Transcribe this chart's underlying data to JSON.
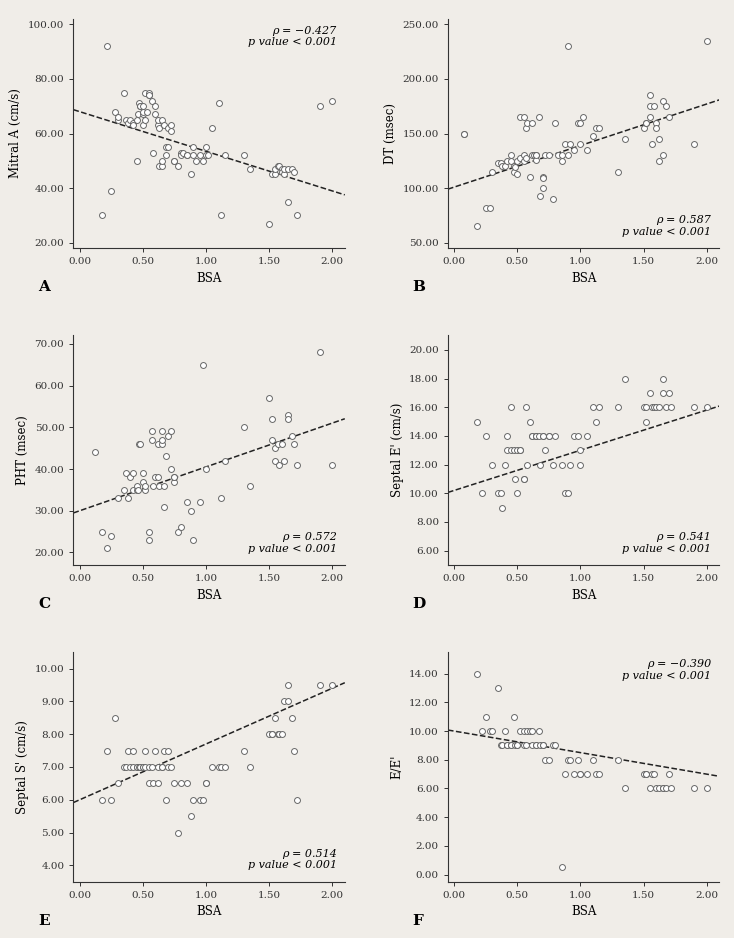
{
  "panels": [
    {
      "label": "A",
      "xlabel": "BSA",
      "ylabel": "Mitral A (cm/s)",
      "xlim": [
        -0.05,
        2.1
      ],
      "ylim": [
        18,
        102
      ],
      "yticks": [
        20.0,
        40.0,
        60.0,
        80.0,
        100.0
      ],
      "xticks": [
        0.0,
        0.5,
        1.0,
        1.5,
        2.0
      ],
      "rho": "ρ = −0.427",
      "pval": "p value < 0.001",
      "stats_loc": "upper right",
      "line_x0": -0.05,
      "line_x1": 2.1,
      "line_slope": -14.5,
      "line_intercept": 68.0,
      "x": [
        0.18,
        0.22,
        0.25,
        0.28,
        0.3,
        0.3,
        0.35,
        0.37,
        0.38,
        0.4,
        0.42,
        0.42,
        0.45,
        0.45,
        0.46,
        0.47,
        0.48,
        0.48,
        0.5,
        0.5,
        0.5,
        0.5,
        0.52,
        0.52,
        0.53,
        0.55,
        0.55,
        0.55,
        0.57,
        0.58,
        0.6,
        0.6,
        0.62,
        0.62,
        0.63,
        0.63,
        0.65,
        0.65,
        0.65,
        0.67,
        0.68,
        0.68,
        0.7,
        0.7,
        0.72,
        0.72,
        0.75,
        0.75,
        0.78,
        0.8,
        0.8,
        0.82,
        0.85,
        0.85,
        0.88,
        0.9,
        0.9,
        0.92,
        0.95,
        0.98,
        1.0,
        1.0,
        1.02,
        1.05,
        1.1,
        1.12,
        1.15,
        1.3,
        1.35,
        1.5,
        1.52,
        1.55,
        1.55,
        1.57,
        1.58,
        1.6,
        1.6,
        1.62,
        1.62,
        1.65,
        1.65,
        1.68,
        1.7,
        1.72,
        1.9,
        2.0
      ],
      "y": [
        30,
        92,
        39,
        68,
        65,
        66,
        75,
        65,
        64,
        65,
        64,
        63,
        65,
        50,
        67,
        71,
        70,
        70,
        63,
        67,
        68,
        70,
        65,
        75,
        68,
        74,
        75,
        74,
        72,
        53,
        70,
        67,
        63,
        65,
        48,
        62,
        65,
        48,
        50,
        63,
        52,
        55,
        62,
        55,
        63,
        61,
        50,
        50,
        48,
        53,
        52,
        53,
        52,
        52,
        45,
        55,
        52,
        50,
        52,
        50,
        52,
        55,
        52,
        62,
        71,
        30,
        52,
        52,
        47,
        27,
        45,
        45,
        47,
        48,
        48,
        47,
        46,
        45,
        47,
        47,
        35,
        47,
        46,
        30,
        70,
        72
      ]
    },
    {
      "label": "B",
      "xlabel": "BSA",
      "ylabel": "DT (msec)",
      "xlim": [
        -0.05,
        2.1
      ],
      "ylim": [
        45,
        255
      ],
      "yticks": [
        50.0,
        100.0,
        150.0,
        200.0,
        250.0
      ],
      "xticks": [
        0.0,
        0.5,
        1.0,
        1.5,
        2.0
      ],
      "rho": "ρ = 0.587",
      "pval": "p value < 0.001",
      "stats_loc": "lower right",
      "line_x0": -0.05,
      "line_x1": 2.1,
      "line_slope": 38.0,
      "line_intercept": 101.0,
      "x": [
        0.08,
        0.08,
        0.18,
        0.25,
        0.28,
        0.3,
        0.35,
        0.37,
        0.38,
        0.4,
        0.42,
        0.45,
        0.45,
        0.47,
        0.47,
        0.48,
        0.5,
        0.5,
        0.52,
        0.52,
        0.55,
        0.55,
        0.55,
        0.57,
        0.57,
        0.58,
        0.6,
        0.62,
        0.62,
        0.63,
        0.65,
        0.65,
        0.65,
        0.67,
        0.68,
        0.7,
        0.7,
        0.7,
        0.72,
        0.75,
        0.78,
        0.8,
        0.82,
        0.85,
        0.85,
        0.88,
        0.9,
        0.9,
        0.92,
        0.95,
        0.98,
        1.0,
        1.0,
        1.02,
        1.05,
        1.1,
        1.12,
        1.15,
        1.3,
        1.35,
        1.5,
        1.52,
        1.52,
        1.55,
        1.55,
        1.55,
        1.57,
        1.58,
        1.6,
        1.6,
        1.62,
        1.62,
        1.65,
        1.65,
        1.68,
        1.7,
        1.9,
        2.0
      ],
      "y": [
        150,
        150,
        65,
        82,
        82,
        115,
        123,
        123,
        120,
        120,
        125,
        130,
        125,
        120,
        115,
        119,
        125,
        113,
        165,
        128,
        130,
        125,
        165,
        128,
        155,
        160,
        110,
        160,
        130,
        130,
        130,
        126,
        130,
        165,
        93,
        110,
        109,
        100,
        130,
        130,
        90,
        160,
        130,
        125,
        130,
        140,
        130,
        230,
        140,
        135,
        160,
        140,
        160,
        165,
        135,
        148,
        155,
        155,
        115,
        145,
        155,
        160,
        160,
        175,
        185,
        165,
        140,
        175,
        160,
        155,
        125,
        145,
        130,
        180,
        175,
        165,
        140,
        235
      ]
    },
    {
      "label": "C",
      "xlabel": "BSA",
      "ylabel": "PHT (msec)",
      "xlim": [
        -0.05,
        2.1
      ],
      "ylim": [
        17,
        72
      ],
      "yticks": [
        20.0,
        30.0,
        40.0,
        50.0,
        60.0,
        70.0
      ],
      "xticks": [
        0.0,
        0.5,
        1.0,
        1.5,
        2.0
      ],
      "rho": "ρ = 0.572",
      "pval": "p value < 0.001",
      "stats_loc": "lower right",
      "line_x0": -0.05,
      "line_x1": 2.1,
      "line_slope": 10.5,
      "line_intercept": 30.0,
      "x": [
        0.12,
        0.18,
        0.22,
        0.25,
        0.3,
        0.35,
        0.37,
        0.38,
        0.4,
        0.42,
        0.42,
        0.45,
        0.45,
        0.46,
        0.47,
        0.48,
        0.5,
        0.5,
        0.52,
        0.52,
        0.55,
        0.55,
        0.57,
        0.57,
        0.58,
        0.6,
        0.62,
        0.62,
        0.63,
        0.65,
        0.65,
        0.65,
        0.67,
        0.67,
        0.68,
        0.7,
        0.72,
        0.72,
        0.75,
        0.75,
        0.75,
        0.78,
        0.8,
        0.85,
        0.88,
        0.9,
        0.95,
        0.98,
        1.0,
        1.12,
        1.15,
        1.3,
        1.35,
        1.5,
        1.52,
        1.52,
        1.55,
        1.55,
        1.57,
        1.58,
        1.6,
        1.62,
        1.65,
        1.65,
        1.68,
        1.7,
        1.72,
        1.9,
        2.0
      ],
      "y": [
        44,
        25,
        21,
        24,
        33,
        35,
        39,
        33,
        38,
        39,
        35,
        35,
        36,
        35,
        46,
        46,
        39,
        37,
        35,
        36,
        25,
        23,
        47,
        49,
        36,
        38,
        46,
        38,
        36,
        46,
        47,
        49,
        31,
        36,
        43,
        48,
        49,
        40,
        37,
        38,
        38,
        25,
        26,
        32,
        30,
        23,
        32,
        65,
        40,
        33,
        42,
        50,
        36,
        57,
        52,
        47,
        42,
        45,
        46,
        41,
        46,
        42,
        53,
        52,
        48,
        46,
        41,
        68,
        41
      ]
    },
    {
      "label": "D",
      "xlabel": "BSA",
      "ylabel": "Septal E' (cm/s)",
      "xlim": [
        -0.05,
        2.1
      ],
      "ylim": [
        5,
        21
      ],
      "yticks": [
        6.0,
        8.0,
        10.0,
        12.0,
        14.0,
        16.0,
        18.0,
        20.0
      ],
      "xticks": [
        0.0,
        0.5,
        1.0,
        1.5,
        2.0
      ],
      "rho": "ρ = 0.541",
      "pval": "p value < 0.001",
      "stats_loc": "lower right",
      "line_x0": -0.05,
      "line_x1": 2.1,
      "line_slope": 2.8,
      "line_intercept": 10.2,
      "x": [
        0.18,
        0.22,
        0.25,
        0.3,
        0.35,
        0.37,
        0.38,
        0.4,
        0.42,
        0.42,
        0.45,
        0.45,
        0.47,
        0.48,
        0.5,
        0.5,
        0.52,
        0.52,
        0.55,
        0.55,
        0.57,
        0.58,
        0.6,
        0.62,
        0.62,
        0.65,
        0.65,
        0.65,
        0.67,
        0.68,
        0.7,
        0.7,
        0.72,
        0.75,
        0.75,
        0.78,
        0.8,
        0.85,
        0.88,
        0.9,
        0.92,
        0.95,
        0.98,
        1.0,
        1.0,
        1.05,
        1.1,
        1.12,
        1.15,
        1.3,
        1.35,
        1.5,
        1.52,
        1.52,
        1.55,
        1.57,
        1.58,
        1.6,
        1.62,
        1.65,
        1.65,
        1.68,
        1.7,
        1.72,
        1.9,
        2.0
      ],
      "y": [
        15,
        10,
        14,
        12,
        10,
        10,
        9,
        12,
        13,
        14,
        13,
        16,
        13,
        11,
        13,
        10,
        13,
        13,
        11,
        11,
        16,
        12,
        15,
        14,
        14,
        14,
        14,
        14,
        14,
        12,
        14,
        14,
        13,
        14,
        14,
        12,
        14,
        12,
        10,
        10,
        12,
        14,
        14,
        12,
        13,
        14,
        16,
        15,
        16,
        16,
        18,
        16,
        16,
        15,
        17,
        16,
        16,
        16,
        16,
        18,
        17,
        16,
        17,
        16,
        16,
        16
      ]
    },
    {
      "label": "E",
      "xlabel": "BSA",
      "ylabel": "Septal S' (cm/s)",
      "xlim": [
        -0.05,
        2.1
      ],
      "ylim": [
        3.5,
        10.5
      ],
      "yticks": [
        4.0,
        5.0,
        6.0,
        7.0,
        8.0,
        9.0,
        10.0
      ],
      "xticks": [
        0.0,
        0.5,
        1.0,
        1.5,
        2.0
      ],
      "rho": "ρ = 0.514",
      "pval": "p value < 0.001",
      "stats_loc": "lower right",
      "line_x0": -0.05,
      "line_x1": 2.1,
      "line_slope": 1.7,
      "line_intercept": 6.0,
      "x": [
        0.18,
        0.22,
        0.25,
        0.28,
        0.3,
        0.35,
        0.37,
        0.38,
        0.4,
        0.42,
        0.42,
        0.45,
        0.45,
        0.47,
        0.48,
        0.5,
        0.5,
        0.52,
        0.52,
        0.55,
        0.55,
        0.57,
        0.58,
        0.6,
        0.62,
        0.62,
        0.65,
        0.65,
        0.67,
        0.68,
        0.7,
        0.7,
        0.72,
        0.75,
        0.78,
        0.8,
        0.85,
        0.88,
        0.9,
        0.95,
        0.98,
        1.0,
        1.0,
        1.05,
        1.1,
        1.12,
        1.15,
        1.3,
        1.35,
        1.5,
        1.52,
        1.52,
        1.55,
        1.57,
        1.58,
        1.6,
        1.62,
        1.65,
        1.65,
        1.68,
        1.7,
        1.72,
        1.9,
        2.0
      ],
      "y": [
        6.0,
        7.5,
        6.0,
        8.5,
        6.5,
        7.0,
        7.0,
        7.5,
        7.0,
        7.0,
        7.5,
        7.0,
        7.0,
        7.0,
        7.0,
        7.0,
        7.0,
        7.0,
        7.5,
        7.0,
        6.5,
        7.0,
        6.5,
        7.5,
        7.0,
        6.5,
        7.0,
        7.0,
        7.5,
        6.0,
        7.5,
        7.0,
        7.0,
        6.5,
        5.0,
        6.5,
        6.5,
        5.5,
        6.0,
        6.0,
        6.0,
        6.5,
        6.5,
        7.0,
        7.0,
        7.0,
        7.0,
        7.5,
        7.0,
        8.0,
        8.0,
        8.0,
        8.5,
        8.0,
        8.0,
        8.0,
        9.0,
        9.0,
        9.5,
        8.5,
        7.5,
        6.0,
        9.5,
        9.5
      ]
    },
    {
      "label": "F",
      "xlabel": "BSA",
      "ylabel": "E/E'",
      "xlim": [
        -0.05,
        2.1
      ],
      "ylim": [
        -0.5,
        15.5
      ],
      "yticks": [
        0.0,
        2.0,
        4.0,
        6.0,
        8.0,
        10.0,
        12.0,
        14.0
      ],
      "xticks": [
        0.0,
        0.5,
        1.0,
        1.5,
        2.0
      ],
      "rho": "ρ = −0.390",
      "pval": "p value < 0.001",
      "stats_loc": "upper right",
      "line_x0": -0.05,
      "line_x1": 2.1,
      "line_slope": -1.5,
      "line_intercept": 10.0,
      "x": [
        0.18,
        0.22,
        0.25,
        0.28,
        0.3,
        0.35,
        0.37,
        0.38,
        0.4,
        0.42,
        0.42,
        0.45,
        0.45,
        0.47,
        0.48,
        0.5,
        0.5,
        0.52,
        0.55,
        0.55,
        0.57,
        0.58,
        0.6,
        0.62,
        0.62,
        0.65,
        0.65,
        0.67,
        0.68,
        0.7,
        0.7,
        0.72,
        0.75,
        0.78,
        0.8,
        0.85,
        0.88,
        0.9,
        0.92,
        0.95,
        0.98,
        1.0,
        1.0,
        1.05,
        1.1,
        1.12,
        1.15,
        1.3,
        1.35,
        1.5,
        1.52,
        1.52,
        1.55,
        1.57,
        1.58,
        1.6,
        1.62,
        1.65,
        1.65,
        1.68,
        1.7,
        1.72,
        1.9,
        2.0
      ],
      "y": [
        14,
        10,
        11,
        10,
        10,
        13,
        9,
        9,
        10,
        9,
        9,
        9,
        9,
        11,
        9,
        9,
        9,
        10,
        10,
        9,
        9,
        10,
        10,
        10,
        9,
        9,
        9,
        10,
        9,
        9,
        9,
        8,
        8,
        9,
        9,
        0.5,
        7,
        8,
        8,
        7,
        8,
        7,
        7,
        7,
        8,
        7,
        7,
        8,
        6,
        7,
        7,
        7,
        6,
        7,
        7,
        6,
        6,
        6,
        6,
        6,
        7,
        6,
        6,
        6
      ]
    }
  ],
  "bg_color": "#f0ede8",
  "marker_facecolor": "white",
  "marker_edge_color": "#666666",
  "line_color": "#222222",
  "font_family": "DejaVu Serif"
}
